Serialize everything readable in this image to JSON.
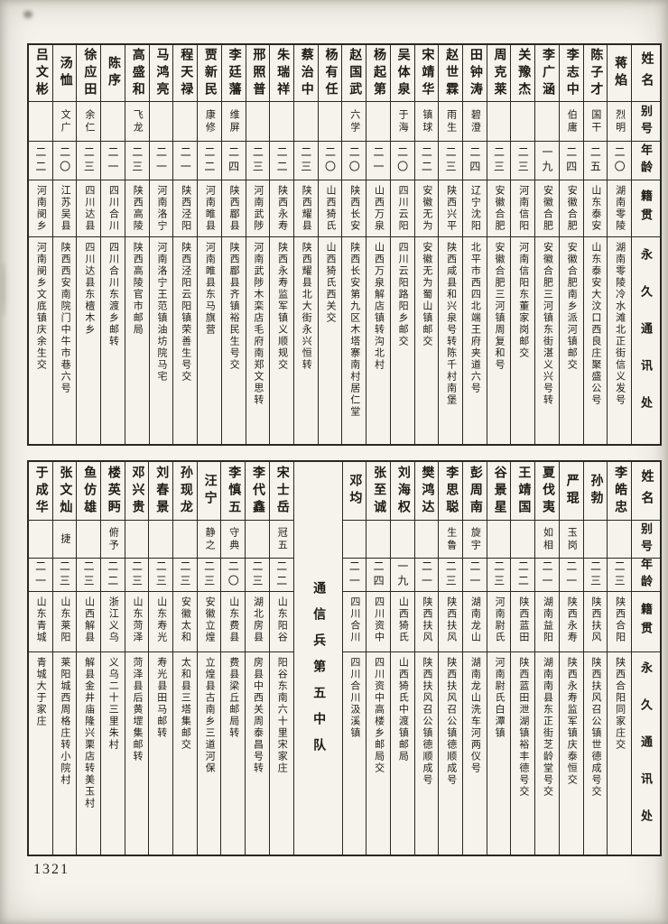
{
  "page": {
    "number": "1321",
    "paper_color": "#f5f3ec",
    "ink_color": "#1e1b17"
  },
  "row_headers": {
    "name": "姓名",
    "alias": "别号",
    "age": "年龄",
    "native": "籍贯",
    "address": "永久通讯处"
  },
  "tables": [
    {
      "id": "t1",
      "entries": [
        {
          "name": "蒋焰",
          "alias": "烈明",
          "age": "二〇",
          "native": "湖南零陵",
          "address": "湖南零陵冷水滩北正街信义发号"
        },
        {
          "name": "陈子才",
          "alias": "国干",
          "age": "二五",
          "native": "山东泰安",
          "address": "山东泰安大汶口西良庄聚盛公号"
        },
        {
          "name": "李志中",
          "alias": "伯庸",
          "age": "二四",
          "native": "安徽合肥",
          "address": "安徽合肥南乡派河镇邮交"
        },
        {
          "name": "李广涵",
          "alias": "",
          "age": "一九",
          "native": "安徽合肥",
          "address": "安徽合肥三河镇东街湛义兴号转"
        },
        {
          "name": "关豫杰",
          "alias": "",
          "age": "二三",
          "native": "河南信阳",
          "address": "河南信阳东董家岗邮交"
        },
        {
          "name": "周克莱",
          "alias": "",
          "age": "二三",
          "native": "安徽合肥",
          "address": "安徽合肥三河镇周复和号"
        },
        {
          "name": "田钟涛",
          "alias": "碧澄",
          "age": "二四",
          "native": "辽宁沈阳",
          "address": "北平市西四北端王府夹道六号"
        },
        {
          "name": "赵世霖",
          "alias": "雨生",
          "age": "二三",
          "native": "陕西兴平",
          "address": "陕西咸县和兴泉号转陈千村南堡"
        },
        {
          "name": "宋靖华",
          "alias": "镇球",
          "age": "二二",
          "native": "安徽无为",
          "address": "安徽无为蜀山镇邮交"
        },
        {
          "name": "吴体泉",
          "alias": "于海",
          "age": "二〇",
          "native": "四川云阳",
          "address": "四川云阳路阳乡邮交"
        },
        {
          "name": "杨起第",
          "alias": "",
          "age": "二一",
          "native": "山西万泉",
          "address": "山西万泉解店镇转沟北村"
        },
        {
          "name": "赵国武",
          "alias": "六学",
          "age": "二〇",
          "native": "陕西长安",
          "address": "陕西长安第九区木塔寨南村居仁堂"
        },
        {
          "name": "杨有任",
          "alias": "",
          "age": "二〇",
          "native": "山西猗氏",
          "address": "山西猗氏西关交"
        },
        {
          "name": "蔡治中",
          "alias": "",
          "age": "二三",
          "native": "陕西耀县",
          "address": "陕西耀县北大街永兴恒转"
        },
        {
          "name": "朱瑞祥",
          "alias": "",
          "age": "二二",
          "native": "陕西永寿",
          "address": "陕西永寿监军镇义顺规交"
        },
        {
          "name": "邢照普",
          "alias": "",
          "age": "二三",
          "native": "河南武陟",
          "address": "河南武陟木栾店毛府南郑文思转"
        },
        {
          "name": "李廷藩",
          "alias": "维屏",
          "age": "二四",
          "native": "陕西郿县",
          "address": "陕西郿县齐镇裕民生号交"
        },
        {
          "name": "贾新民",
          "alias": "康修",
          "age": "二二",
          "native": "河南睢县",
          "address": "河南睢县东马旗营"
        },
        {
          "name": "程天禄",
          "alias": "",
          "age": "二一",
          "native": "陕西泾阳",
          "address": "陕西泾阳云阳镇荣善生号交"
        },
        {
          "name": "马鸿亮",
          "alias": "",
          "age": "二一",
          "native": "河南洛宁",
          "address": "河南洛宁王范镇油坊院马宅"
        },
        {
          "name": "高盛和",
          "alias": "飞龙",
          "age": "二三",
          "native": "陕西高陵",
          "address": "陕西高陵官市邮局"
        },
        {
          "name": "陈序",
          "alias": "",
          "age": "二一",
          "native": "四川合川",
          "address": "四川合川东渡乡邮转"
        },
        {
          "name": "徐应田",
          "alias": "余仁",
          "age": "二三",
          "native": "四川达县",
          "address": "四川达县东檀木乡"
        },
        {
          "name": "汤恤",
          "alias": "文广",
          "age": "二〇",
          "native": "江苏吴县",
          "address": "陕西西安南院门中牛市巷六号"
        },
        {
          "name": "吕文彬",
          "alias": "",
          "age": "二二",
          "native": "河南阌乡",
          "address": "河南阌乡文底镇庆余生交"
        }
      ]
    },
    {
      "id": "t2",
      "entries": [
        {
          "name": "李皓忠",
          "alias": "",
          "age": "二三",
          "native": "陕西合阳",
          "address": "陕西合阳同家庄交"
        },
        {
          "name": "孙勃",
          "alias": "",
          "age": "二三",
          "native": "陕西扶风",
          "address": "陕西扶风召公镇世德成号交"
        },
        {
          "name": "严琨",
          "alias": "玉岗",
          "age": "二一",
          "native": "陕西永寿",
          "address": "陕西永寿监军镇庆泰恒交"
        },
        {
          "name": "夏伐夷",
          "alias": "如相",
          "age": "二一",
          "native": "湖南益阳",
          "address": "湖南南县东正街芝龄堂号交"
        },
        {
          "name": "王靖国",
          "alias": "",
          "age": "二二",
          "native": "陕西蓝田",
          "address": "陕西蓝田泄湖镇裕丰德号交"
        },
        {
          "name": "谷景星",
          "alias": "",
          "age": "二三",
          "native": "河南尉氏",
          "address": "河南尉氏白潭镇"
        },
        {
          "name": "彭周南",
          "alias": "旋宇",
          "age": "二一",
          "native": "湖南龙山",
          "address": "湖南龙山洗车河两仪号"
        },
        {
          "name": "李思聪",
          "alias": "生鲁",
          "age": "二三",
          "native": "陕西扶风",
          "address": "陕西扶风召公镇德顺成号"
        },
        {
          "name": "樊鸿达",
          "alias": "",
          "age": "二一",
          "native": "陕西扶风",
          "address": "陕西扶风召公镇德顺成号"
        },
        {
          "name": "刘海权",
          "alias": "",
          "age": "一九",
          "native": "山西猗氏",
          "address": "山西猗氏中渡镇邮局"
        },
        {
          "name": "张至诚",
          "alias": "",
          "age": "二四",
          "native": "四川资中",
          "address": "四川资中高楼乡邮局交"
        },
        {
          "name": "邓均",
          "alias": "",
          "age": "二一",
          "native": "四川合川",
          "address": "四川合川汲溪镇"
        },
        {
          "unit": "通信兵第五中队"
        },
        {
          "name": "宋士岳",
          "alias": "冠五",
          "age": "二二",
          "native": "山东阳谷",
          "address": "阳谷东南六十里宋家庄"
        },
        {
          "name": "李代鑫",
          "alias": "",
          "age": "二三",
          "native": "湖北房县",
          "address": "房县中西关周泰昌号转"
        },
        {
          "name": "李慎五",
          "alias": "守典",
          "age": "二〇",
          "native": "山东费县",
          "address": "费县梁丘邮局转"
        },
        {
          "name": "汪宁",
          "alias": "静之",
          "age": "二三",
          "native": "安徽立煌",
          "address": "立煌县古南乡三道河保"
        },
        {
          "name": "孙现龙",
          "alias": "",
          "age": "二三",
          "native": "安徽太和",
          "address": "太和县三塔集邮交"
        },
        {
          "name": "刘春景",
          "alias": "",
          "age": "二三",
          "native": "山东寿光",
          "address": "寿光县田马邮转"
        },
        {
          "name": "邓兴贵",
          "alias": "",
          "age": "二三",
          "native": "山东菏泽",
          "address": "菏泽县后黄堽集邮转"
        },
        {
          "name": "楼英眄",
          "alias": "俯予",
          "age": "二二",
          "native": "浙江义乌",
          "address": "义乌二十三里朱村"
        },
        {
          "name": "鱼仿雄",
          "alias": "",
          "age": "二三",
          "native": "山西解县",
          "address": "解县金井庙隆兴栗店转美玉村"
        },
        {
          "name": "张文灿",
          "alias": "捷",
          "age": "二三",
          "native": "山东莱阳",
          "address": "莱阳城西周格庄转小院村"
        },
        {
          "name": "于成华",
          "alias": "",
          "age": "二一",
          "native": "山东青城",
          "address": "青城大于家庄"
        }
      ]
    }
  ]
}
